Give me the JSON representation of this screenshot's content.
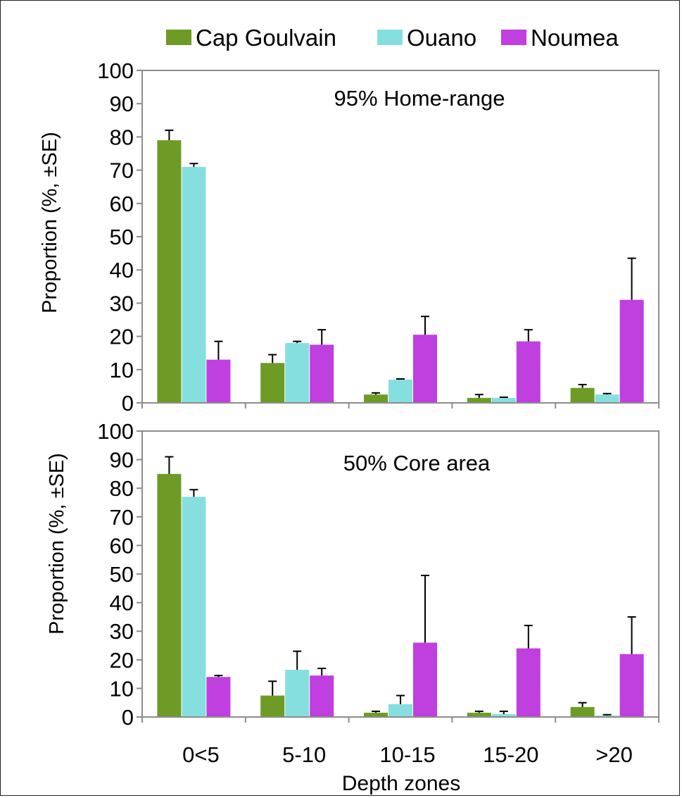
{
  "legend": {
    "position": "top",
    "items": [
      {
        "label": "Cap Goulvain",
        "color": "#6e9b25"
      },
      {
        "label": "Ouano",
        "color": "#86dfdf"
      },
      {
        "label": "Noumea",
        "color": "#bf3fdf"
      }
    ]
  },
  "x_axis_title": "Depth zones",
  "chart_data": [
    {
      "type": "bar",
      "title": "95% Home-range",
      "ylabel": "Proportion (%, ±SE)",
      "ylim": [
        0,
        100
      ],
      "yticks": [
        0,
        10,
        20,
        30,
        40,
        50,
        60,
        70,
        80,
        90,
        100
      ],
      "categories": [
        "0<5",
        "5-10",
        "10-15",
        "15-20",
        ">20"
      ],
      "series": [
        {
          "name": "Cap Goulvain",
          "color": "#6e9b25",
          "values": [
            79,
            12,
            2.5,
            1.5,
            4.5
          ],
          "se": [
            3,
            2.5,
            0.5,
            1,
            1
          ]
        },
        {
          "name": "Ouano",
          "color": "#86dfdf",
          "values": [
            71,
            18,
            7,
            1.5,
            2.5
          ],
          "se": [
            1,
            0.5,
            0.2,
            0.2,
            0.3
          ]
        },
        {
          "name": "Noumea",
          "color": "#bf3fdf",
          "values": [
            13,
            17.5,
            20.5,
            18.5,
            31
          ],
          "se": [
            5.5,
            4.5,
            5.5,
            3.5,
            12.5
          ]
        }
      ],
      "grid": false
    },
    {
      "type": "bar",
      "title": "50% Core area",
      "ylabel": "Proportion (%, ±SE)",
      "ylim": [
        0,
        100
      ],
      "yticks": [
        0,
        10,
        20,
        30,
        40,
        50,
        60,
        70,
        80,
        90,
        100
      ],
      "categories": [
        "0<5",
        "5-10",
        "10-15",
        "15-20",
        ">20"
      ],
      "series": [
        {
          "name": "Cap Goulvain",
          "color": "#6e9b25",
          "values": [
            85,
            7.5,
            1.5,
            1.5,
            3.5
          ],
          "se": [
            6,
            5,
            0.5,
            0.5,
            1.5
          ]
        },
        {
          "name": "Ouano",
          "color": "#86dfdf",
          "values": [
            77,
            16.5,
            4.5,
            1,
            0.5
          ],
          "se": [
            2.5,
            6.5,
            3,
            1,
            0.3
          ]
        },
        {
          "name": "Noumea",
          "color": "#bf3fdf",
          "values": [
            14,
            14.5,
            26,
            24,
            22
          ],
          "se": [
            0.5,
            2.5,
            23.5,
            8,
            13
          ]
        }
      ],
      "grid": false
    }
  ]
}
